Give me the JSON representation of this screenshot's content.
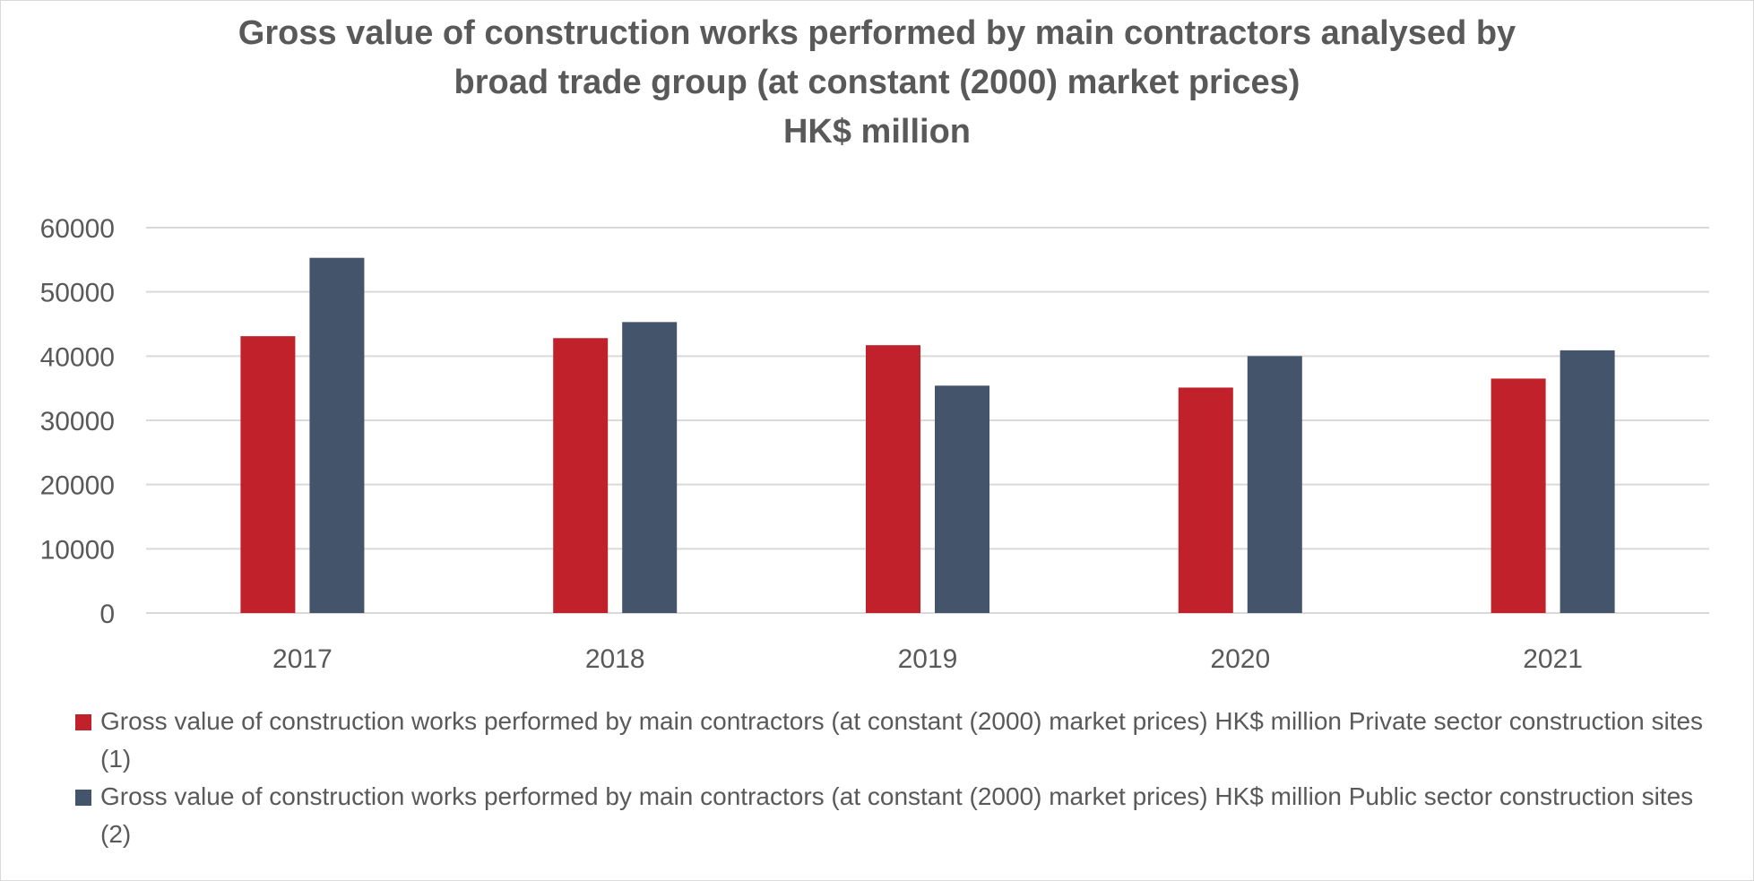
{
  "chart_data": {
    "type": "bar",
    "title": [
      "Gross value of construction works performed by main contractors analysed by",
      "broad trade group (at constant (2000) market prices)",
      "HK$ million"
    ],
    "categories": [
      "2017",
      "2018",
      "2019",
      "2020",
      "2021"
    ],
    "series": [
      {
        "name": "Gross value of construction works performed by main contractors (at constant (2000) market prices) HK$ million Private sector construction sites (1)",
        "color": "#c0212a",
        "values": [
          43100,
          42800,
          41700,
          35100,
          36500
        ]
      },
      {
        "name": "Gross value of construction works performed by main contractors (at constant (2000) market prices) HK$ million Public sector construction sites (2)",
        "color": "#44546a",
        "values": [
          55300,
          45300,
          35400,
          40000,
          40900
        ]
      }
    ],
    "ylim": [
      0,
      60000
    ],
    "yticks": [
      "0",
      "10000",
      "20000",
      "30000",
      "40000",
      "50000",
      "60000"
    ],
    "grid": true,
    "legend_position": "bottom",
    "xlabel": "",
    "ylabel": ""
  },
  "colors": {
    "gridline": "#d9d9d9",
    "text": "#595959"
  }
}
